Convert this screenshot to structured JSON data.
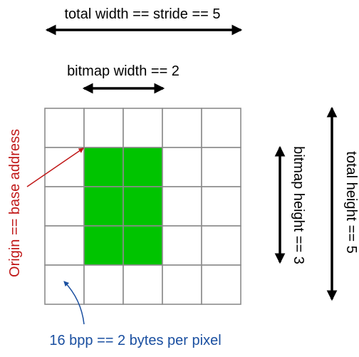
{
  "labels": {
    "total_width": "total width == stride == 5",
    "bitmap_width": "bitmap width == 2",
    "bitmap_height": "bitmap height == 3",
    "total_height": "total height == 5",
    "origin": "Origin == base address",
    "bpp": "16 bpp == 2 bytes per pixel"
  },
  "grid": {
    "columns": 5,
    "rows": 5,
    "filled_cells": [
      [
        1,
        1
      ],
      [
        2,
        1
      ],
      [
        1,
        2
      ],
      [
        2,
        2
      ],
      [
        1,
        3
      ],
      [
        2,
        3
      ]
    ]
  },
  "colors": {
    "fill": "#00c400",
    "grid_line": "#8c8c8c",
    "arrow": "#000000",
    "origin": "#c01818",
    "bpp": "#1a4fa0"
  }
}
